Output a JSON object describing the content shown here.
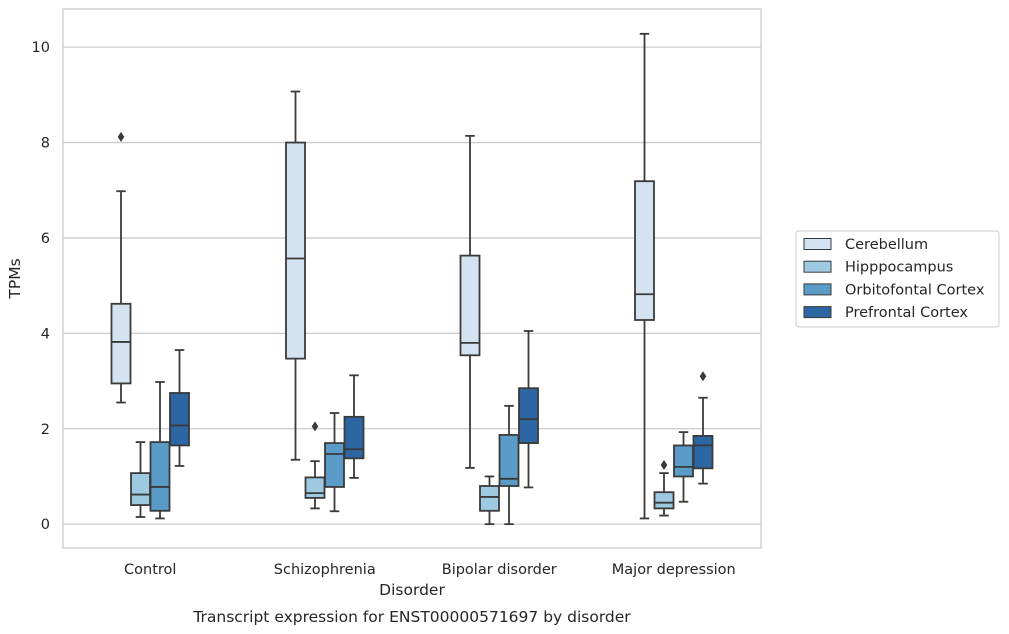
{
  "caption": "Transcript expression for ENST00000571697 by disorder",
  "chart_data": {
    "type": "boxplot",
    "xlabel": "Disorder",
    "ylabel": "TPMs",
    "ylim": [
      -0.5,
      10.8
    ],
    "yticks": [
      0,
      2,
      4,
      6,
      8,
      10
    ],
    "grid": "horizontal",
    "legend_position": "right",
    "categories": [
      "Control",
      "Schizophrenia",
      "Bipolar disorder",
      "Major depression"
    ],
    "series": [
      {
        "name": "Cerebellum",
        "color": "#d4e3f2",
        "boxes": [
          {
            "whisker_low": 2.55,
            "q1": 2.95,
            "median": 3.82,
            "q3": 4.62,
            "whisker_high": 6.98,
            "outliers": [
              8.12
            ]
          },
          {
            "whisker_low": 1.35,
            "q1": 3.47,
            "median": 5.57,
            "q3": 8.0,
            "whisker_high": 9.07,
            "outliers": []
          },
          {
            "whisker_low": 1.18,
            "q1": 3.54,
            "median": 3.8,
            "q3": 5.63,
            "whisker_high": 8.14,
            "outliers": []
          },
          {
            "whisker_low": 0.12,
            "q1": 4.28,
            "median": 4.82,
            "q3": 7.19,
            "whisker_high": 10.28,
            "outliers": []
          }
        ]
      },
      {
        "name": "Hipppocampus",
        "color": "#9dc9e1",
        "boxes": [
          {
            "whisker_low": 0.15,
            "q1": 0.4,
            "median": 0.62,
            "q3": 1.07,
            "whisker_high": 1.72,
            "outliers": []
          },
          {
            "whisker_low": 0.33,
            "q1": 0.55,
            "median": 0.65,
            "q3": 0.98,
            "whisker_high": 1.32,
            "outliers": [
              2.05
            ]
          },
          {
            "whisker_low": 0.0,
            "q1": 0.28,
            "median": 0.57,
            "q3": 0.8,
            "whisker_high": 1.0,
            "outliers": []
          },
          {
            "whisker_low": 0.18,
            "q1": 0.33,
            "median": 0.45,
            "q3": 0.67,
            "whisker_high": 1.07,
            "outliers": [
              1.24
            ]
          }
        ]
      },
      {
        "name": "Orbitofontal Cortex",
        "color": "#5a9bc7",
        "boxes": [
          {
            "whisker_low": 0.12,
            "q1": 0.28,
            "median": 0.78,
            "q3": 1.72,
            "whisker_high": 2.98,
            "outliers": []
          },
          {
            "whisker_low": 0.27,
            "q1": 0.78,
            "median": 1.47,
            "q3": 1.7,
            "whisker_high": 2.33,
            "outliers": []
          },
          {
            "whisker_low": 0.0,
            "q1": 0.8,
            "median": 0.95,
            "q3": 1.87,
            "whisker_high": 2.48,
            "outliers": []
          },
          {
            "whisker_low": 0.47,
            "q1": 1.0,
            "median": 1.2,
            "q3": 1.65,
            "whisker_high": 1.93,
            "outliers": []
          }
        ]
      },
      {
        "name": "Prefrontal Cortex",
        "color": "#2c66a3",
        "boxes": [
          {
            "whisker_low": 1.22,
            "q1": 1.65,
            "median": 2.07,
            "q3": 2.75,
            "whisker_high": 3.65,
            "outliers": []
          },
          {
            "whisker_low": 0.97,
            "q1": 1.38,
            "median": 1.57,
            "q3": 2.25,
            "whisker_high": 3.12,
            "outliers": []
          },
          {
            "whisker_low": 0.77,
            "q1": 1.7,
            "median": 2.2,
            "q3": 2.85,
            "whisker_high": 4.05,
            "outliers": []
          },
          {
            "whisker_low": 0.85,
            "q1": 1.17,
            "median": 1.65,
            "q3": 1.85,
            "whisker_high": 2.65,
            "outliers": [
              3.1
            ]
          }
        ]
      }
    ]
  }
}
